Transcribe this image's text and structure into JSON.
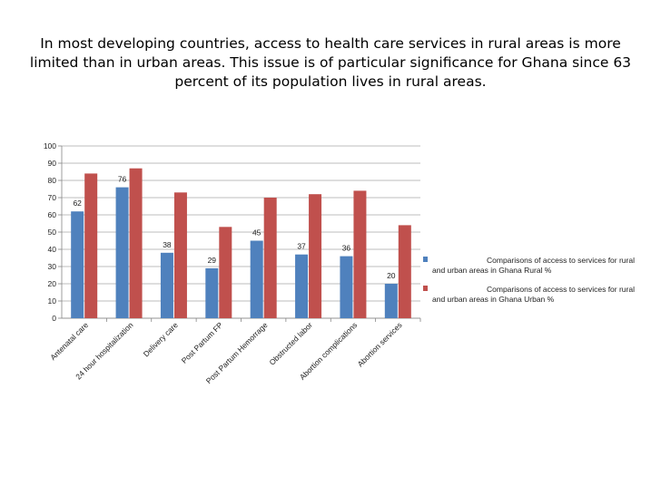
{
  "slide": {
    "title_lines": [
      "In most developing countries, access to  health care services in rural areas is more",
      "limited than in urban areas. This issue is of particular significance for Ghana since 63",
      "percent of its population lives in rural areas."
    ]
  },
  "chart_data": {
    "type": "bar",
    "categories": [
      "Antenatal care",
      "24 hour hospitalization",
      "Delivery care",
      "Post Partum FP",
      "Post Partum Hemorrage",
      "Obstructed labor",
      "Abortion complications",
      "Abortion services"
    ],
    "series": [
      {
        "name": "Comparisons of access to services for rural and urban areas in Ghana Rural %",
        "values": [
          62,
          76,
          38,
          29,
          45,
          37,
          36,
          20
        ],
        "color": "#4f81bd",
        "show_labels": true
      },
      {
        "name": "Comparisons of access to services for rural and urban areas in Ghana Urban %",
        "values": [
          84,
          87,
          73,
          53,
          70,
          72,
          74,
          54
        ],
        "color": "#c0504d",
        "show_labels": false
      }
    ],
    "ylim": [
      0,
      100
    ],
    "yticks": [
      0,
      10,
      20,
      30,
      40,
      50,
      60,
      70,
      80,
      90,
      100
    ],
    "grid": true,
    "legend_position": "right"
  }
}
